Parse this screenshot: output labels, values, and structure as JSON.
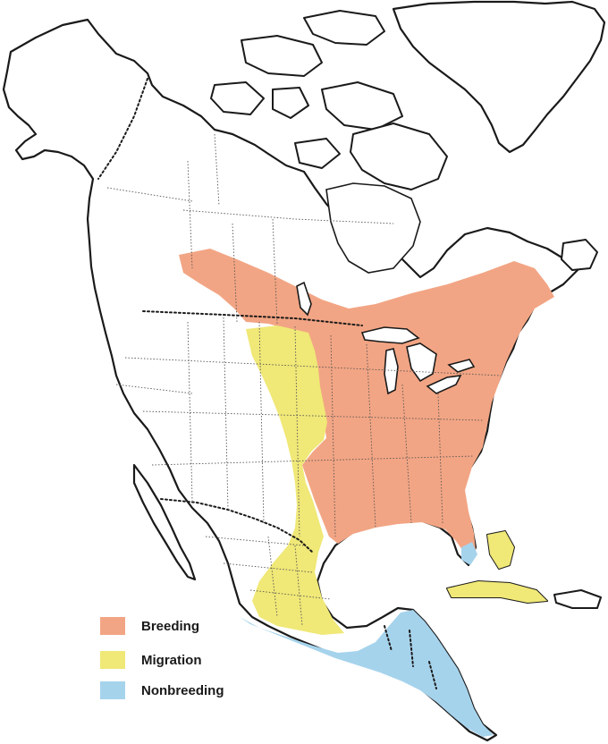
{
  "legend": {
    "breeding": {
      "label": "Breeding",
      "color": "#f2a584"
    },
    "migration": {
      "label": "Migration",
      "color": "#f0e877"
    },
    "nonbreeding": {
      "label": "Nonbreeding",
      "color": "#a6d3ec"
    }
  },
  "colors": {
    "land_outline": "#1a1a1a",
    "background": "#ffffff"
  }
}
